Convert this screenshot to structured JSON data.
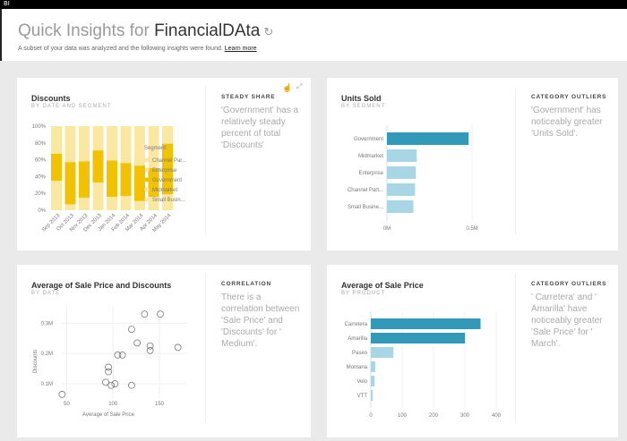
{
  "app": {
    "name": "BI"
  },
  "header": {
    "title_prefix": "Quick Insights for",
    "title_dataset": "FinancialDAta",
    "subtitle": "A subset of your data was analyzed and the following insights were found.",
    "learn_more": "Learn more"
  },
  "cards": [
    {
      "title": "Discounts",
      "subtitle": "BY DATE AND SEGMENT",
      "insight_type": "STEADY SHARE",
      "insight": "'Government' has a relatively steady percent of total 'Discounts'"
    },
    {
      "title": "Units Sold",
      "subtitle": "BY SEGMENT",
      "insight_type": "CATEGORY OUTLIERS",
      "insight": "'Government' has noticeably greater 'Units Sold'."
    },
    {
      "title": "Average of Sale Price and Discounts",
      "subtitle": "BY DATE",
      "insight_type": "CORRELATION",
      "insight": "There is a correlation between 'Sale Price' and 'Discounts' for ' Medium'."
    },
    {
      "title": "Average of Sale Price",
      "subtitle": "BY PRODUCT",
      "insight_type": "CATEGORY OUTLIERS",
      "insight": "' Carretera' and ' Amarilla' have noticeably greater 'Sale Price' for ' March'."
    }
  ],
  "colors": {
    "gov": "#f2c200",
    "other": "#fbe8a0",
    "highlight": "#3399b8",
    "bar": "#a9d6e5"
  },
  "chart_data": [
    {
      "type": "bar",
      "stacked": true,
      "title": "Discounts",
      "categories": [
        "Sep 2013",
        "Oct 2013",
        "Nov 2013",
        "Dec 2013",
        "Jan 2014",
        "Feb 2014",
        "Mar 2014",
        "Apr 2014",
        "May 2014"
      ],
      "gov_range": [
        [
          35,
          67
        ],
        [
          7,
          57
        ],
        [
          15,
          58
        ],
        [
          33,
          71
        ],
        [
          16,
          59
        ],
        [
          17,
          56
        ],
        [
          11,
          53
        ],
        [
          16,
          50
        ],
        [
          19,
          79
        ]
      ],
      "yticks": [
        "0%",
        "20%",
        "40%",
        "60%",
        "80%",
        "100%"
      ],
      "legend_title": "Segment",
      "legend": [
        "Channel Par...",
        "Enterprise",
        "Government",
        "Midmarket",
        "Small Busin..."
      ]
    },
    {
      "type": "bar",
      "orientation": "horizontal",
      "title": "Units Sold",
      "categories": [
        "Government",
        "Midmarket",
        "Enterprise",
        "Channel Part...",
        "Small Busine..."
      ],
      "values": [
        0.48,
        0.175,
        0.17,
        0.165,
        0.155
      ],
      "xlim": [
        0,
        0.5
      ],
      "xticks": [
        "0M",
        "0.5M"
      ]
    },
    {
      "type": "scatter",
      "title": "Average of Sale Price and Discounts",
      "xlabel": "Average of Sale Price",
      "ylabel": "Discounts",
      "xlim": [
        35,
        180
      ],
      "ylim": [
        0.05,
        0.36
      ],
      "points": [
        [
          134,
          0.33
        ],
        [
          151,
          0.33
        ],
        [
          120,
          0.28
        ],
        [
          126,
          0.235
        ],
        [
          140,
          0.225
        ],
        [
          140,
          0.21
        ],
        [
          170,
          0.22
        ],
        [
          105,
          0.195
        ],
        [
          110,
          0.195
        ],
        [
          95,
          0.155
        ],
        [
          95,
          0.14
        ],
        [
          92,
          0.105
        ],
        [
          102,
          0.1
        ],
        [
          98,
          0.095
        ],
        [
          120,
          0.095
        ],
        [
          45,
          0.065
        ]
      ],
      "xticks": [
        50,
        100,
        150
      ],
      "xtick_labels": [
        "50",
        "100",
        "150"
      ],
      "yticks": [
        0.1,
        0.2,
        0.3
      ],
      "ytick_labels": [
        "0.1M",
        "0.2M",
        "0.3M"
      ]
    },
    {
      "type": "bar",
      "orientation": "horizontal",
      "title": "Average of Sale Price",
      "categories": [
        "Carretera",
        "Amarilla",
        "Paseo",
        "Montana",
        "Velo",
        "VTT"
      ],
      "values": [
        350,
        300,
        72,
        14,
        12,
        6
      ],
      "xlim": [
        0,
        400
      ],
      "xticks": [
        0,
        100,
        200,
        300,
        400
      ],
      "xtick_labels": [
        "0",
        "100",
        "200",
        "300",
        "400"
      ]
    }
  ]
}
